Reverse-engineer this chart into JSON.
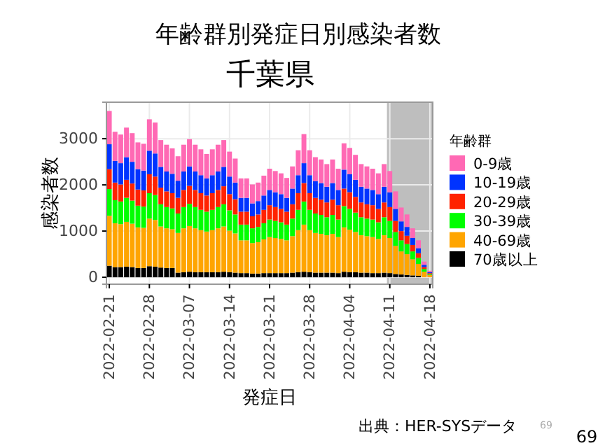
{
  "chart_data": {
    "type": "bar",
    "stacked": true,
    "title": "年齢群別発症日別感染者数",
    "subtitle": "千葉県",
    "xlabel": "発症日",
    "ylabel": "感染者数",
    "legend_title": "年齢群",
    "annotations": [
      "出典：HER-SYSデータ",
      "69",
      "69"
    ],
    "x": [
      "2022-02-21",
      "2022-02-22",
      "2022-02-23",
      "2022-02-24",
      "2022-02-25",
      "2022-02-26",
      "2022-02-27",
      "2022-02-28",
      "2022-03-01",
      "2022-03-02",
      "2022-03-03",
      "2022-03-04",
      "2022-03-05",
      "2022-03-06",
      "2022-03-07",
      "2022-03-08",
      "2022-03-09",
      "2022-03-10",
      "2022-03-11",
      "2022-03-12",
      "2022-03-13",
      "2022-03-14",
      "2022-03-15",
      "2022-03-16",
      "2022-03-17",
      "2022-03-18",
      "2022-03-19",
      "2022-03-20",
      "2022-03-21",
      "2022-03-22",
      "2022-03-23",
      "2022-03-24",
      "2022-03-25",
      "2022-03-26",
      "2022-03-27",
      "2022-03-28",
      "2022-03-29",
      "2022-03-30",
      "2022-03-31",
      "2022-04-01",
      "2022-04-02",
      "2022-04-03",
      "2022-04-04",
      "2022-04-05",
      "2022-04-06",
      "2022-04-07",
      "2022-04-08",
      "2022-04-09",
      "2022-04-10",
      "2022-04-11",
      "2022-04-12",
      "2022-04-13",
      "2022-04-14",
      "2022-04-15",
      "2022-04-16",
      "2022-04-17",
      "2022-04-18"
    ],
    "series": [
      {
        "name": "70歳以上",
        "color": "#000000",
        "values": [
          250,
          220,
          220,
          230,
          220,
          200,
          200,
          240,
          230,
          210,
          200,
          200,
          100,
          110,
          120,
          110,
          110,
          110,
          110,
          110,
          120,
          110,
          100,
          90,
          90,
          80,
          80,
          90,
          90,
          90,
          90,
          90,
          100,
          110,
          120,
          110,
          100,
          100,
          100,
          100,
          90,
          120,
          110,
          110,
          100,
          100,
          90,
          90,
          100,
          90,
          70,
          60,
          50,
          40,
          30,
          null,
          null
        ]
      },
      {
        "name": "40-69歳",
        "color": "#ffa500",
        "values": [
          1080,
          950,
          930,
          970,
          940,
          880,
          870,
          1030,
          1010,
          890,
          860,
          840,
          860,
          950,
          990,
          950,
          910,
          880,
          910,
          950,
          980,
          900,
          850,
          710,
          710,
          660,
          680,
          730,
          780,
          760,
          740,
          710,
          790,
          910,
          1020,
          910,
          860,
          840,
          810,
          840,
          780,
          960,
          920,
          870,
          810,
          790,
          780,
          740,
          810,
          760,
          610,
          500,
          450,
          350,
          260,
          120,
          50
        ]
      },
      {
        "name": "30-39歳",
        "color": "#00ff00",
        "values": [
          580,
          500,
          490,
          520,
          500,
          470,
          460,
          550,
          540,
          480,
          460,
          450,
          420,
          460,
          480,
          460,
          440,
          430,
          440,
          460,
          480,
          440,
          410,
          340,
          340,
          320,
          330,
          350,
          380,
          370,
          360,
          340,
          380,
          440,
          500,
          440,
          420,
          410,
          390,
          410,
          380,
          460,
          450,
          420,
          390,
          380,
          380,
          360,
          390,
          370,
          300,
          240,
          220,
          170,
          130,
          60,
          20
        ]
      },
      {
        "name": "20-29歳",
        "color": "#ff2200",
        "values": [
          430,
          380,
          370,
          390,
          370,
          350,
          350,
          410,
          400,
          360,
          340,
          330,
          340,
          370,
          390,
          370,
          360,
          350,
          360,
          370,
          390,
          350,
          330,
          280,
          280,
          260,
          270,
          290,
          310,
          300,
          290,
          280,
          310,
          360,
          400,
          360,
          340,
          330,
          320,
          330,
          310,
          380,
          360,
          340,
          320,
          310,
          310,
          290,
          320,
          300,
          240,
          200,
          180,
          140,
          100,
          40,
          20
        ]
      },
      {
        "name": "10-19歳",
        "color": "#0033ff",
        "values": [
          540,
          470,
          460,
          490,
          470,
          440,
          430,
          510,
          500,
          450,
          430,
          420,
          370,
          400,
          420,
          400,
          390,
          370,
          390,
          400,
          420,
          380,
          360,
          300,
          300,
          280,
          290,
          310,
          330,
          320,
          320,
          300,
          340,
          390,
          430,
          390,
          360,
          360,
          340,
          360,
          330,
          410,
          390,
          370,
          340,
          340,
          330,
          320,
          340,
          320,
          260,
          210,
          190,
          150,
          110,
          50,
          20
        ]
      },
      {
        "name": "0-9歳",
        "color": "#ff69b4",
        "values": [
          720,
          630,
          620,
          640,
          620,
          580,
          580,
          680,
          670,
          580,
          580,
          550,
          530,
          580,
          590,
          580,
          560,
          530,
          560,
          580,
          580,
          540,
          520,
          420,
          420,
          410,
          400,
          430,
          460,
          460,
          450,
          430,
          480,
          540,
          630,
          540,
          520,
          510,
          490,
          510,
          460,
          570,
          570,
          540,
          490,
          480,
          460,
          450,
          490,
          460,
          380,
          300,
          270,
          210,
          170,
          70,
          30
        ]
      }
    ],
    "xlim": [
      "2022-02-20T12:00",
      "2022-04-18T12:00"
    ],
    "xticks": [
      "2022-02-21",
      "2022-02-28",
      "2022-03-07",
      "2022-03-14",
      "2022-03-21",
      "2022-03-28",
      "2022-04-04",
      "2022-04-11",
      "2022-04-18"
    ],
    "ylim": [
      -150,
      3790
    ],
    "yticks": [
      0,
      1000,
      2000,
      3000
    ],
    "bands": [
      {
        "axis": "x",
        "from": "2022-04-10T12:00",
        "to": "2022-04-18T12:00",
        "color": "#bebebe"
      }
    ],
    "grid": true,
    "legend": "right"
  }
}
